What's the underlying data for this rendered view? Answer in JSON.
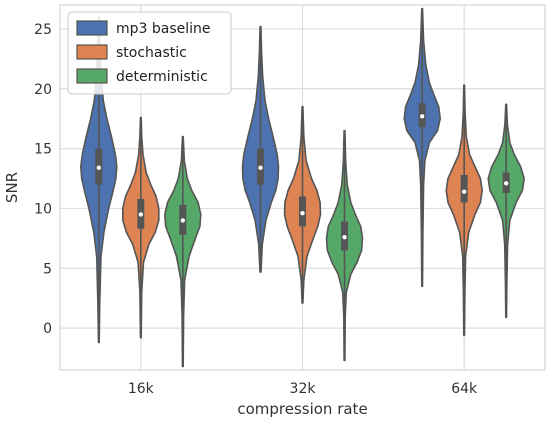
{
  "chart_data": {
    "type": "violin",
    "xlabel": "compression rate",
    "ylabel": "SNR",
    "categories": [
      "16k",
      "32k",
      "64k"
    ],
    "ylim": [
      -3.5,
      27
    ],
    "yticks": [
      0,
      5,
      10,
      15,
      20,
      25
    ],
    "grid": true,
    "legend_position": "top-left",
    "colors": {
      "mp3 baseline": "#4c72b0",
      "stochastic": "#dd8452",
      "deterministic": "#55a868"
    },
    "series": [
      {
        "name": "mp3 baseline",
        "groups": [
          {
            "category": "16k",
            "min": -1.2,
            "q1": 12.0,
            "median": 13.4,
            "q3": 15.0,
            "max": 26.0,
            "profile": [
              [
                -1.2,
                0.02
              ],
              [
                2,
                0.05
              ],
              [
                6,
                0.12
              ],
              [
                8,
                0.28
              ],
              [
                10,
                0.55
              ],
              [
                11.5,
                0.8
              ],
              [
                12.5,
                0.95
              ],
              [
                13.5,
                1.0
              ],
              [
                14.5,
                0.92
              ],
              [
                16,
                0.7
              ],
              [
                17.5,
                0.45
              ],
              [
                19,
                0.25
              ],
              [
                21,
                0.13
              ],
              [
                23,
                0.07
              ],
              [
                26,
                0.02
              ]
            ]
          },
          {
            "category": "32k",
            "min": 4.7,
            "q1": 12.0,
            "median": 13.4,
            "q3": 15.0,
            "max": 25.2,
            "profile": [
              [
                4.7,
                0.03
              ],
              [
                7,
                0.1
              ],
              [
                9,
                0.3
              ],
              [
                10.5,
                0.6
              ],
              [
                11.5,
                0.85
              ],
              [
                12.5,
                0.98
              ],
              [
                13.5,
                1.0
              ],
              [
                14.5,
                0.93
              ],
              [
                16,
                0.7
              ],
              [
                17.5,
                0.45
              ],
              [
                19,
                0.25
              ],
              [
                21,
                0.12
              ],
              [
                23,
                0.06
              ],
              [
                25.2,
                0.02
              ]
            ]
          },
          {
            "category": "64k",
            "min": 3.5,
            "q1": 16.8,
            "median": 17.7,
            "q3": 18.8,
            "max": 26.7,
            "profile": [
              [
                3.5,
                0.02
              ],
              [
                8,
                0.04
              ],
              [
                12,
                0.08
              ],
              [
                14,
                0.15
              ],
              [
                15.5,
                0.4
              ],
              [
                16.5,
                0.85
              ],
              [
                17.5,
                1.0
              ],
              [
                18.5,
                0.92
              ],
              [
                19.5,
                0.65
              ],
              [
                20.5,
                0.4
              ],
              [
                22,
                0.2
              ],
              [
                24,
                0.08
              ],
              [
                26.7,
                0.02
              ]
            ]
          }
        ]
      },
      {
        "name": "stochastic",
        "groups": [
          {
            "category": "16k",
            "min": -0.8,
            "q1": 8.3,
            "median": 9.5,
            "q3": 10.8,
            "max": 17.6,
            "profile": [
              [
                -0.8,
                0.02
              ],
              [
                3,
                0.05
              ],
              [
                5.5,
                0.15
              ],
              [
                7,
                0.45
              ],
              [
                8,
                0.8
              ],
              [
                9,
                1.0
              ],
              [
                10,
                1.0
              ],
              [
                11,
                0.85
              ],
              [
                12,
                0.55
              ],
              [
                13,
                0.3
              ],
              [
                14.5,
                0.12
              ],
              [
                16,
                0.05
              ],
              [
                17.6,
                0.02
              ]
            ]
          },
          {
            "category": "32k",
            "min": 2.1,
            "q1": 8.5,
            "median": 9.6,
            "q3": 11.0,
            "max": 18.5,
            "profile": [
              [
                2.1,
                0.02
              ],
              [
                4,
                0.07
              ],
              [
                6,
                0.25
              ],
              [
                7.5,
                0.6
              ],
              [
                8.5,
                0.85
              ],
              [
                9.5,
                1.0
              ],
              [
                10.5,
                0.98
              ],
              [
                11.5,
                0.8
              ],
              [
                12.5,
                0.5
              ],
              [
                14,
                0.2
              ],
              [
                16,
                0.07
              ],
              [
                18.5,
                0.02
              ]
            ]
          },
          {
            "category": "64k",
            "min": -0.6,
            "q1": 10.5,
            "median": 11.4,
            "q3": 12.8,
            "max": 20.3,
            "profile": [
              [
                -0.6,
                0.02
              ],
              [
                3,
                0.04
              ],
              [
                6,
                0.08
              ],
              [
                8,
                0.25
              ],
              [
                9.5,
                0.6
              ],
              [
                10.5,
                0.9
              ],
              [
                11.5,
                1.0
              ],
              [
                12.5,
                0.9
              ],
              [
                13.5,
                0.6
              ],
              [
                14.5,
                0.3
              ],
              [
                16,
                0.12
              ],
              [
                18,
                0.05
              ],
              [
                20.3,
                0.02
              ]
            ]
          }
        ]
      },
      {
        "name": "deterministic",
        "groups": [
          {
            "category": "16k",
            "min": -3.2,
            "q1": 7.8,
            "median": 9.0,
            "q3": 10.3,
            "max": 16.0,
            "profile": [
              [
                -3.2,
                0.02
              ],
              [
                1,
                0.04
              ],
              [
                4,
                0.1
              ],
              [
                6,
                0.35
              ],
              [
                7.5,
                0.7
              ],
              [
                8.5,
                0.95
              ],
              [
                9.5,
                1.0
              ],
              [
                10.5,
                0.85
              ],
              [
                11.5,
                0.5
              ],
              [
                12.5,
                0.25
              ],
              [
                14,
                0.08
              ],
              [
                16,
                0.02
              ]
            ]
          },
          {
            "category": "32k",
            "min": -2.7,
            "q1": 6.5,
            "median": 7.6,
            "q3": 8.9,
            "max": 16.5,
            "profile": [
              [
                -2.7,
                0.02
              ],
              [
                1,
                0.04
              ],
              [
                3,
                0.1
              ],
              [
                4.5,
                0.35
              ],
              [
                5.5,
                0.7
              ],
              [
                6.5,
                0.95
              ],
              [
                7.5,
                1.0
              ],
              [
                8.5,
                0.9
              ],
              [
                9.5,
                0.6
              ],
              [
                10.5,
                0.35
              ],
              [
                12,
                0.15
              ],
              [
                14,
                0.06
              ],
              [
                16.5,
                0.02
              ]
            ]
          },
          {
            "category": "64k",
            "min": 0.9,
            "q1": 11.3,
            "median": 12.1,
            "q3": 13.0,
            "max": 18.7,
            "profile": [
              [
                0.9,
                0.02
              ],
              [
                4,
                0.04
              ],
              [
                7,
                0.08
              ],
              [
                9,
                0.2
              ],
              [
                10.5,
                0.55
              ],
              [
                11.5,
                0.9
              ],
              [
                12.5,
                1.0
              ],
              [
                13.5,
                0.8
              ],
              [
                14.5,
                0.45
              ],
              [
                15.5,
                0.2
              ],
              [
                17,
                0.07
              ],
              [
                18.7,
                0.02
              ]
            ]
          }
        ]
      }
    ]
  }
}
